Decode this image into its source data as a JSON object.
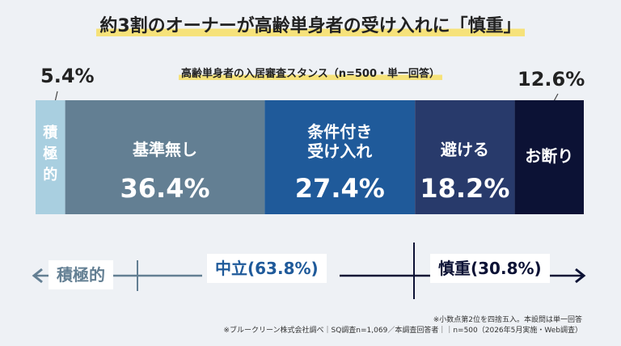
{
  "title": "約3割のオーナーが高齢単身者の受け入れに「慎重」",
  "chart_data": {
    "type": "bar",
    "orientation": "stacked-100",
    "subtitle": "高齢単身者の入居審査スタンス（n=500・単一回答）",
    "categories": [
      "積極的",
      "基準無し",
      "条件付き受け入れ",
      "避ける",
      "お断り"
    ],
    "values": [
      5.4,
      36.4,
      27.4,
      18.2,
      12.6
    ],
    "unit": "%",
    "segments": [
      {
        "label_lines": [
          "積",
          "極",
          "的"
        ],
        "value": 5.4,
        "value_text": "5.4%",
        "color": "#a9cfe0",
        "label_inside": true,
        "value_outside": "top-left"
      },
      {
        "label_lines": [
          "基準無し"
        ],
        "value": 36.4,
        "value_text": "36.4%",
        "color": "#637f93"
      },
      {
        "label_lines": [
          "条件付き",
          "受け入れ"
        ],
        "value": 27.4,
        "value_text": "27.4%",
        "color": "#1f5a9a"
      },
      {
        "label_lines": [
          "避ける"
        ],
        "value": 18.2,
        "value_text": "18.2%",
        "color": "#283a6b"
      },
      {
        "label_lines": [
          "お断り"
        ],
        "value": 12.6,
        "value_text": "12.6%",
        "color": "#0c1235",
        "value_outside": "top-right"
      }
    ]
  },
  "scale": {
    "left": {
      "label": "積極的",
      "arrow": "←"
    },
    "middle": {
      "label": "中立(63.8%)"
    },
    "right": {
      "label": "慎重(30.8%)",
      "arrow": "→"
    }
  },
  "notes": {
    "line1": "※小数点第2位を四捨五入。本設問は単一回答",
    "line2": "※ブルークリーン株式会社調べ｜SQ調査n=1,069／本調査回答者｜｜n=500（2026年5月実施・Web調査）"
  }
}
